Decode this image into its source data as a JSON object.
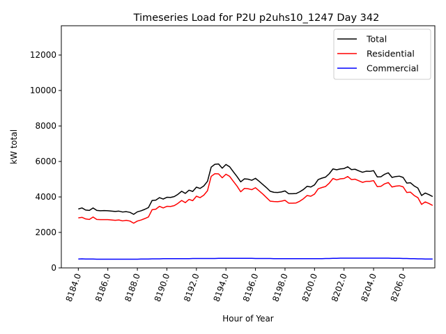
{
  "chart_data": {
    "type": "line",
    "title": "Timeseries Load for P2U p2uhs10_1247  Day 342",
    "xlabel": "Hour of Year",
    "ylabel": "kW total",
    "xlim": [
      8182.85,
      8208.15
    ],
    "ylim": [
      0,
      13650
    ],
    "xticks": [
      8184,
      8186,
      8188,
      8190,
      8192,
      8194,
      8196,
      8198,
      8200,
      8202,
      8204,
      8206
    ],
    "xtick_labels": [
      "8184.0",
      "8186.0",
      "8188.0",
      "8190.0",
      "8192.0",
      "8194.0",
      "8196.0",
      "8198.0",
      "8200.0",
      "8202.0",
      "8204.0",
      "8206.0"
    ],
    "yticks": [
      0,
      2000,
      4000,
      6000,
      8000,
      10000,
      12000
    ],
    "ytick_labels": [
      "0",
      "2000",
      "4000",
      "6000",
      "8000",
      "10000",
      "12000"
    ],
    "grid": false,
    "legend_position": "top-right",
    "x_start": 8184,
    "x_step": 0.25,
    "series": [
      {
        "name": "Total",
        "color": "#000000",
        "values": [
          3320,
          3380,
          3260,
          3240,
          3380,
          3240,
          3220,
          3230,
          3220,
          3200,
          3180,
          3200,
          3150,
          3170,
          3130,
          3020,
          3160,
          3220,
          3300,
          3400,
          3800,
          3820,
          3960,
          3880,
          3980,
          3970,
          4020,
          4150,
          4320,
          4200,
          4380,
          4310,
          4550,
          4480,
          4620,
          4880,
          5680,
          5840,
          5860,
          5620,
          5830,
          5700,
          5420,
          5150,
          4850,
          5020,
          5000,
          4940,
          5050,
          4880,
          4700,
          4520,
          4320,
          4260,
          4250,
          4280,
          4340,
          4180,
          4180,
          4190,
          4290,
          4420,
          4600,
          4560,
          4680,
          4980,
          5060,
          5120,
          5310,
          5580,
          5530,
          5580,
          5600,
          5700,
          5540,
          5560,
          5470,
          5390,
          5450,
          5440,
          5480,
          5130,
          5140,
          5280,
          5360,
          5100,
          5150,
          5170,
          5100,
          4780,
          4800,
          4620,
          4500,
          4080,
          4220,
          4130,
          4020
        ]
      },
      {
        "name": "Residential",
        "color": "#ff0000",
        "values": [
          2820,
          2850,
          2760,
          2730,
          2870,
          2730,
          2720,
          2720,
          2720,
          2700,
          2680,
          2700,
          2650,
          2680,
          2640,
          2520,
          2640,
          2700,
          2780,
          2870,
          3280,
          3310,
          3470,
          3380,
          3470,
          3460,
          3510,
          3640,
          3800,
          3680,
          3860,
          3790,
          4040,
          3960,
          4100,
          4350,
          5160,
          5310,
          5300,
          5080,
          5280,
          5160,
          4880,
          4610,
          4290,
          4480,
          4460,
          4410,
          4520,
          4340,
          4160,
          3960,
          3760,
          3740,
          3730,
          3760,
          3810,
          3650,
          3650,
          3660,
          3760,
          3900,
          4080,
          4040,
          4160,
          4460,
          4530,
          4590,
          4780,
          5040,
          4960,
          5020,
          5040,
          5150,
          4980,
          5000,
          4910,
          4820,
          4880,
          4880,
          4920,
          4580,
          4600,
          4740,
          4810,
          4560,
          4610,
          4630,
          4570,
          4250,
          4270,
          4080,
          3960,
          3580,
          3720,
          3630,
          3520
        ]
      },
      {
        "name": "Commercial",
        "color": "#0000ff",
        "values": [
          500,
          510,
          500,
          500,
          500,
          490,
          490,
          490,
          490,
          490,
          490,
          490,
          490,
          490,
          490,
          490,
          490,
          500,
          500,
          500,
          510,
          510,
          510,
          520,
          520,
          520,
          520,
          520,
          520,
          520,
          520,
          530,
          530,
          530,
          530,
          530,
          530,
          530,
          540,
          540,
          540,
          540,
          540,
          540,
          540,
          540,
          540,
          540,
          530,
          530,
          530,
          530,
          530,
          520,
          520,
          520,
          520,
          520,
          520,
          520,
          520,
          520,
          520,
          520,
          520,
          520,
          520,
          530,
          530,
          540,
          540,
          550,
          550,
          550,
          550,
          550,
          550,
          550,
          550,
          550,
          550,
          550,
          550,
          550,
          550,
          540,
          540,
          540,
          530,
          530,
          520,
          520,
          510,
          510,
          500,
          500,
          500
        ]
      }
    ]
  }
}
